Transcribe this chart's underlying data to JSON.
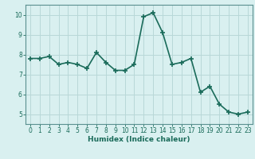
{
  "x": [
    0,
    1,
    2,
    3,
    4,
    5,
    6,
    7,
    8,
    9,
    10,
    11,
    12,
    13,
    14,
    15,
    16,
    17,
    18,
    19,
    20,
    21,
    22,
    23
  ],
  "y": [
    7.8,
    7.8,
    7.9,
    7.5,
    7.6,
    7.5,
    7.3,
    8.1,
    7.6,
    7.2,
    7.2,
    7.5,
    9.9,
    10.1,
    9.1,
    7.5,
    7.6,
    7.8,
    6.1,
    6.4,
    5.5,
    5.1,
    5.0,
    5.1
  ],
  "line_color": "#1a6b5a",
  "bg_color": "#d9f0f0",
  "grid_color": "#b8d8d8",
  "xlabel": "Humidex (Indice chaleur)",
  "ylim": [
    4.5,
    10.5
  ],
  "yticks": [
    5,
    6,
    7,
    8,
    9,
    10
  ],
  "xticks": [
    0,
    1,
    2,
    3,
    4,
    5,
    6,
    7,
    8,
    9,
    10,
    11,
    12,
    13,
    14,
    15,
    16,
    17,
    18,
    19,
    20,
    21,
    22,
    23
  ],
  "marker": "+",
  "linewidth": 1.2,
  "markersize": 4,
  "tick_fontsize": 5.5,
  "xlabel_fontsize": 6.5
}
